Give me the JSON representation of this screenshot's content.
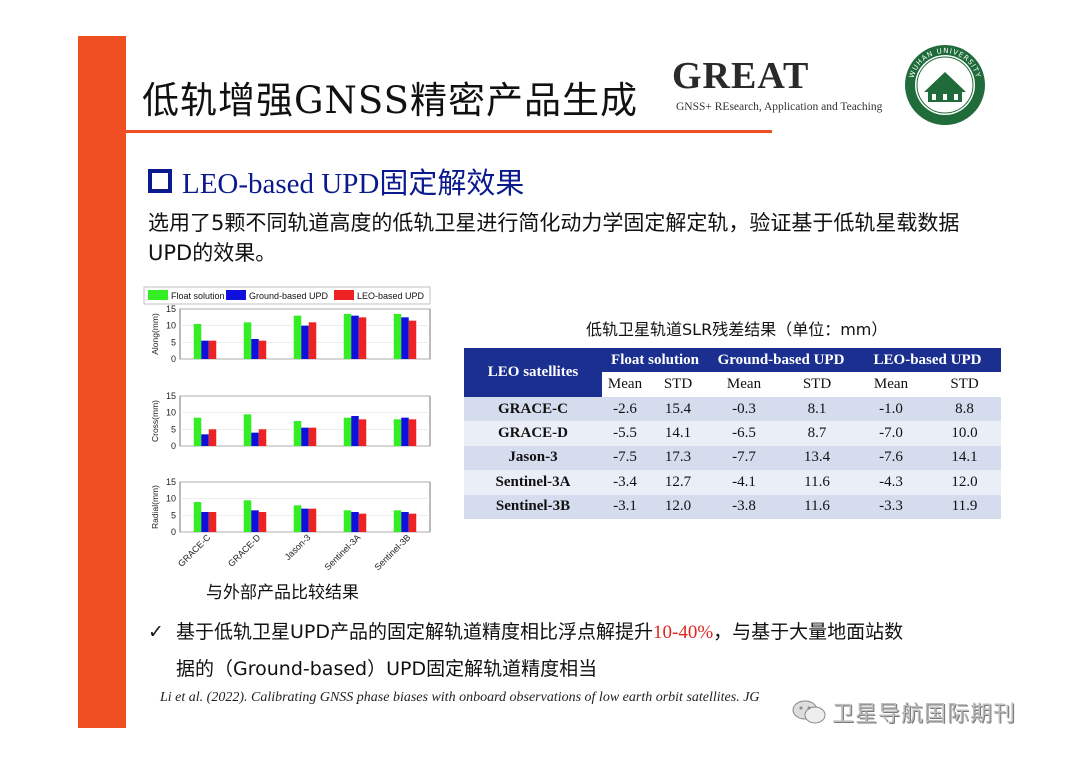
{
  "header": {
    "title": "低轨增强GNSS精密产品生成",
    "logo_word": "GREAT",
    "logo_tagline": "GNSS+ REsearch, Application and Teaching",
    "seal_text": "WUHAN UNIVERSITY"
  },
  "section": {
    "heading": "LEO-based UPD固定解效果",
    "description": "选用了5颗不同轨道高度的低轨卫星进行简化动力学固定解定轨，验证基于低轨星载数据UPD的效果。"
  },
  "chart_data": {
    "type": "bar",
    "legend": [
      "Float solution",
      "Ground-based UPD",
      "LEO-based UPD"
    ],
    "colors": [
      "#33ee22",
      "#1010dd",
      "#ee2222"
    ],
    "categories": [
      "GRACE-C",
      "GRACE-D",
      "Jason-3",
      "Sentinel-3A",
      "Sentinel-3B"
    ],
    "ylim": [
      0,
      15
    ],
    "yticks": [
      0,
      5,
      10,
      15
    ],
    "panels": [
      {
        "ylabel": "Along(mm)",
        "series": [
          {
            "name": "Float solution",
            "values": [
              10.5,
              11,
              13,
              13.5,
              13.5
            ]
          },
          {
            "name": "Ground-based UPD",
            "values": [
              5.5,
              6,
              10,
              13,
              12.5
            ]
          },
          {
            "name": "LEO-based UPD",
            "values": [
              5.5,
              5.5,
              11,
              12.5,
              11.5
            ]
          }
        ]
      },
      {
        "ylabel": "Cross(mm)",
        "series": [
          {
            "name": "Float solution",
            "values": [
              8.5,
              9.5,
              7.5,
              8.5,
              8
            ]
          },
          {
            "name": "Ground-based UPD",
            "values": [
              3.5,
              4,
              5.5,
              9,
              8.5
            ]
          },
          {
            "name": "LEO-based UPD",
            "values": [
              5,
              5,
              5.5,
              8,
              8
            ]
          }
        ]
      },
      {
        "ylabel": "Radial(mm)",
        "series": [
          {
            "name": "Float solution",
            "values": [
              9,
              9.5,
              8,
              6.5,
              6.5
            ]
          },
          {
            "name": "Ground-based UPD",
            "values": [
              6,
              6.5,
              7,
              6,
              6
            ]
          },
          {
            "name": "LEO-based UPD",
            "values": [
              6,
              6,
              7,
              5.5,
              5.5
            ]
          }
        ]
      }
    ],
    "caption": "与外部产品比较结果"
  },
  "table": {
    "caption": "低轨卫星轨道SLR残差结果（单位：mm）",
    "corner": "LEO satellites",
    "groups": [
      "Float solution",
      "Ground-based UPD",
      "LEO-based UPD"
    ],
    "subheaders": [
      "Mean",
      "STD",
      "Mean",
      "STD",
      "Mean",
      "STD"
    ],
    "rows": [
      {
        "name": "GRACE-C",
        "values": [
          "-2.6",
          "15.4",
          "-0.3",
          "8.1",
          "-1.0",
          "8.8"
        ]
      },
      {
        "name": "GRACE-D",
        "values": [
          "-5.5",
          "14.1",
          "-6.5",
          "8.7",
          "-7.0",
          "10.0"
        ]
      },
      {
        "name": "Jason-3",
        "values": [
          "-7.5",
          "17.3",
          "-7.7",
          "13.4",
          "-7.6",
          "14.1"
        ]
      },
      {
        "name": "Sentinel-3A",
        "values": [
          "-3.4",
          "12.7",
          "-4.1",
          "11.6",
          "-4.3",
          "12.0"
        ]
      },
      {
        "name": "Sentinel-3B",
        "values": [
          "-3.1",
          "12.0",
          "-3.8",
          "11.6",
          "-3.3",
          "11.9"
        ]
      }
    ]
  },
  "conclusion": {
    "part1": "基于低轨卫星UPD产品的固定解轨道精度相比浮点解提升",
    "highlight": "10-40%",
    "part2": "，与基于大量地面站数",
    "line2": "据的（Ground-based）UPD固定解轨道精度相当"
  },
  "citation": "Li et al. (2022). Calibrating GNSS phase biases with onboard observations of low earth orbit satellites. JG",
  "watermark": "卫星导航国际期刊",
  "colors": {
    "accent": "#f04e23",
    "heading_blue": "#0b1a8c",
    "table_header": "#1a2f8f",
    "highlight": "#e0261f"
  }
}
